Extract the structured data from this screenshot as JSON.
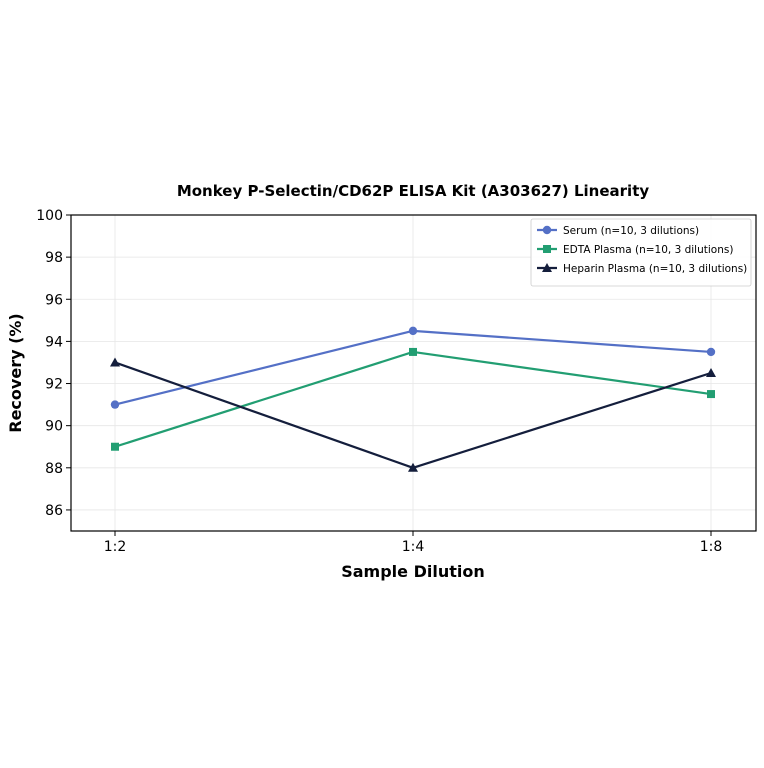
{
  "chart_data": {
    "type": "line",
    "title": "Monkey P-Selectin/CD62P ELISA Kit (A303627) Linearity",
    "xlabel": "Sample Dilution",
    "ylabel": "Recovery (%)",
    "categories": [
      "1:2",
      "1:4",
      "1:8"
    ],
    "ylim": [
      85,
      100
    ],
    "yticks": [
      86,
      88,
      90,
      92,
      94,
      96,
      98,
      100
    ],
    "grid": true,
    "legend_position": "top-right",
    "series": [
      {
        "name": "Serum (n=10, 3 dilutions)",
        "values": [
          91.0,
          94.5,
          93.5
        ],
        "color": "#5470c6",
        "marker": "circle"
      },
      {
        "name": "EDTA Plasma (n=10, 3 dilutions)",
        "values": [
          89.0,
          93.5,
          91.5
        ],
        "color": "#229e72",
        "marker": "square"
      },
      {
        "name": "Heparin Plasma (n=10, 3 dilutions)",
        "values": [
          93.0,
          88.0,
          92.5
        ],
        "color": "#141e3c",
        "marker": "triangle"
      }
    ]
  }
}
